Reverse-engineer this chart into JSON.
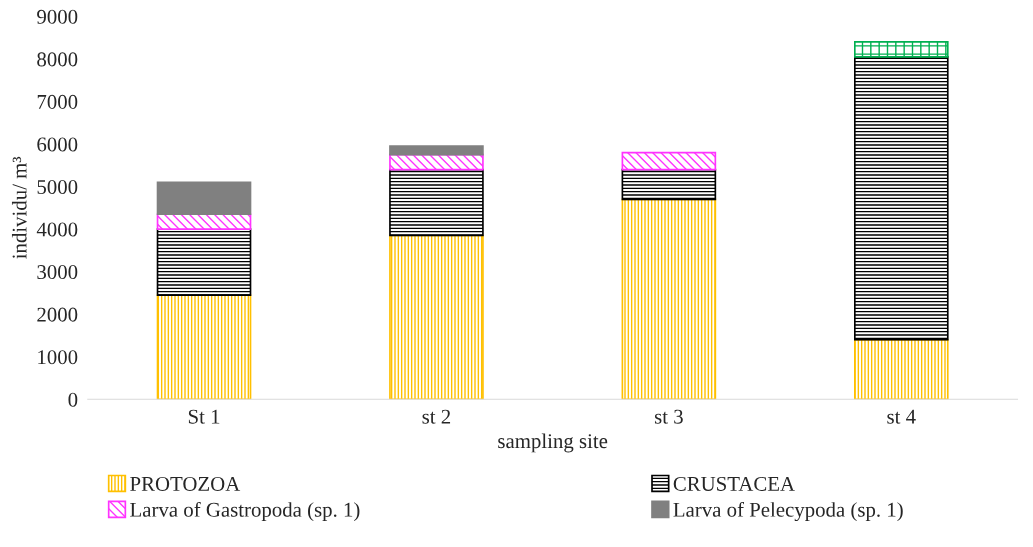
{
  "chart_data": {
    "type": "bar",
    "stacked": true,
    "xlabel": "sampling site",
    "ylabel": "individu/ m³",
    "categories": [
      "St 1",
      "st 2",
      "st 3",
      "st 4"
    ],
    "series": [
      {
        "name": "PROTOZOA",
        "color": "#ffc000",
        "values": [
          2450,
          3850,
          4700,
          1400
        ]
      },
      {
        "name": "CRUSTACEA",
        "color": "#000000",
        "values": [
          1550,
          1550,
          700,
          6650
        ]
      },
      {
        "name": "Larva of Gastropoda (sp. 1)",
        "color": "#ff33ff",
        "values": [
          350,
          350,
          400,
          null
        ]
      },
      {
        "name": "Larva of Pelecypoda (sp. 1)",
        "color": "#808080",
        "values": [
          750,
          200,
          null,
          null
        ]
      },
      {
        "color": "#00b050",
        "values": [
          null,
          null,
          null,
          350
        ]
      }
    ],
    "ylim": [
      0,
      9000
    ],
    "yticks": [
      0,
      1000,
      2000,
      3000,
      4000,
      5000,
      6000,
      7000,
      8000,
      9000
    ],
    "grid": false,
    "legend": "bottom"
  }
}
